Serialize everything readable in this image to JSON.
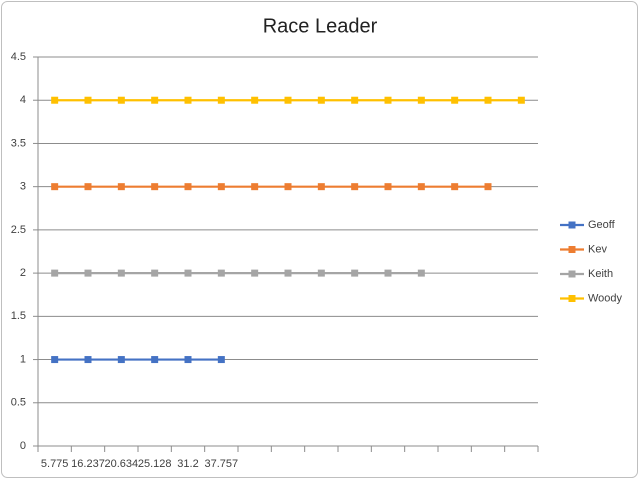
{
  "chart_data": {
    "type": "line",
    "title": "Race Leader",
    "categories": [
      "5.775",
      "16.237",
      "20.634",
      "25.128",
      "31.2",
      "37.757",
      null,
      null,
      null,
      null,
      null,
      null,
      null,
      null,
      null
    ],
    "series": [
      {
        "name": "Geoff",
        "color": "#4472c4",
        "values": [
          1,
          1,
          1,
          1,
          1,
          1,
          null,
          null,
          null,
          null,
          null,
          null,
          null,
          null,
          null
        ]
      },
      {
        "name": "Kev",
        "color": "#ed7d31",
        "values": [
          3,
          3,
          3,
          3,
          3,
          3,
          3,
          3,
          3,
          3,
          3,
          3,
          3,
          3,
          null
        ]
      },
      {
        "name": "Keith",
        "color": "#a5a5a5",
        "values": [
          2,
          2,
          2,
          2,
          2,
          2,
          2,
          2,
          2,
          2,
          2,
          2,
          null,
          null,
          null
        ]
      },
      {
        "name": "Woody",
        "color": "#ffc000",
        "values": [
          4,
          4,
          4,
          4,
          4,
          4,
          4,
          4,
          4,
          4,
          4,
          4,
          4,
          4,
          4
        ]
      }
    ],
    "ylim": [
      0,
      4.5
    ],
    "yticks": [
      0,
      0.5,
      1,
      1.5,
      2,
      2.5,
      3,
      3.5,
      4,
      4.5
    ],
    "grid": true,
    "legend": "right"
  }
}
